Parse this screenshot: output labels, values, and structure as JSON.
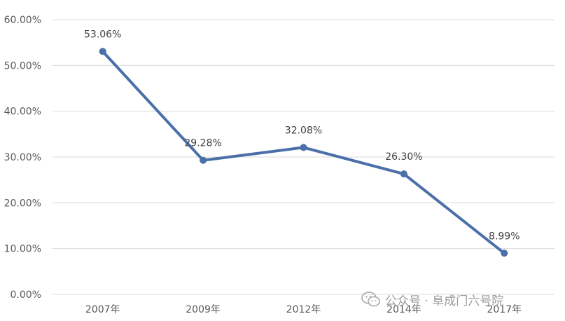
{
  "chart_data": {
    "type": "line",
    "categories": [
      "2007年",
      "2009年",
      "2012年",
      "2014年",
      "2017年"
    ],
    "values": [
      53.06,
      29.28,
      32.08,
      26.3,
      8.99
    ],
    "data_labels": [
      "53.06%",
      "29.28%",
      "32.08%",
      "26.30%",
      "8.99%"
    ],
    "y_ticks": [
      "0.00%",
      "10.00%",
      "20.00%",
      "30.00%",
      "40.00%",
      "50.00%",
      "60.00%"
    ],
    "ylim": [
      0,
      60
    ],
    "grid": true,
    "legend": "none",
    "title": "",
    "xlabel": "",
    "ylabel": "",
    "line_color": "#4a6fa9",
    "grid_color": "#d9d9d9"
  },
  "watermark": {
    "icon": "wechat-icon",
    "text": "公众号 · 阜成门六号院"
  }
}
